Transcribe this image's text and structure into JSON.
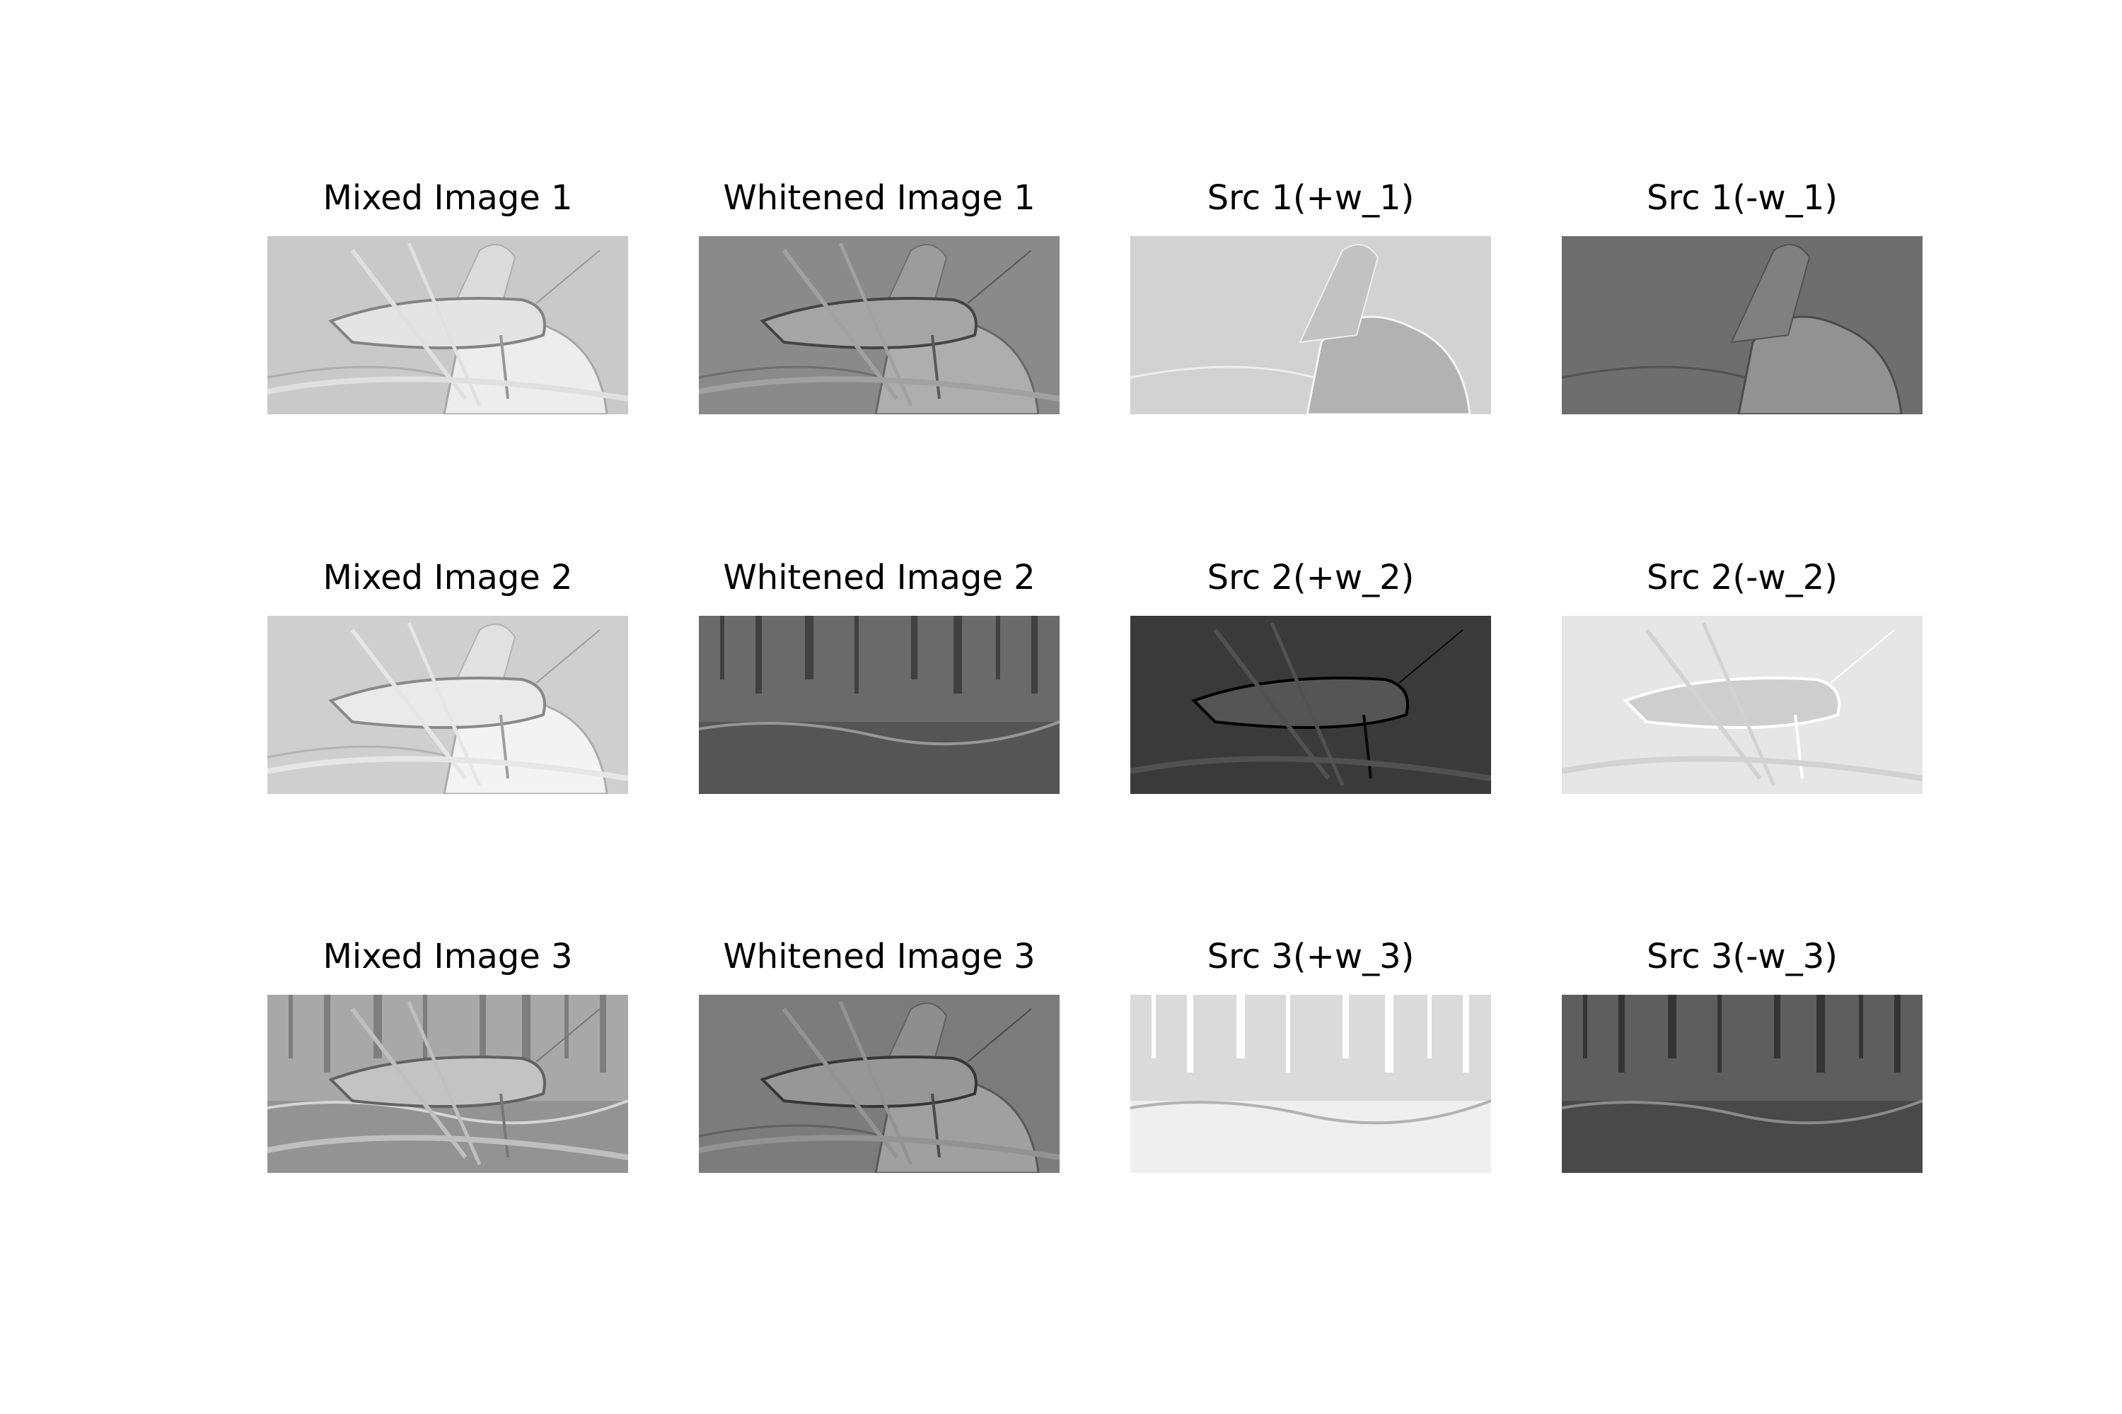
{
  "figure": {
    "panels": [
      {
        "title": "Mixed Image 1",
        "tone": "#c9c9c9",
        "content": "grasshopper-rock-blend",
        "inverted": false
      },
      {
        "title": "Whitened Image 1",
        "tone": "#8a8a8a",
        "content": "grasshopper-rock-blend",
        "inverted": false
      },
      {
        "title": "Src 1(+w_1)",
        "tone": "#d2d2d2",
        "content": "rock-valley",
        "inverted": true
      },
      {
        "title": "Src 1(-w_1)",
        "tone": "#6e6e6e",
        "content": "rock-valley",
        "inverted": false
      },
      {
        "title": "Mixed Image 2",
        "tone": "#cfcfcf",
        "content": "grasshopper-rock-blend",
        "inverted": false
      },
      {
        "title": "Whitened Image 2",
        "tone": "#6a6a6a",
        "content": "forest-clearing",
        "inverted": false
      },
      {
        "title": "Src 2(+w_2)",
        "tone": "#3a3a3a",
        "content": "grasshopper",
        "inverted": false
      },
      {
        "title": "Src 2(-w_2)",
        "tone": "#e6e6e6",
        "content": "grasshopper",
        "inverted": true
      },
      {
        "title": "Mixed Image 3",
        "tone": "#a8a8a8",
        "content": "grasshopper-forest-blend",
        "inverted": false
      },
      {
        "title": "Whitened Image 3",
        "tone": "#7c7c7c",
        "content": "grasshopper-rock-blend",
        "inverted": false
      },
      {
        "title": "Src 3(+w_3)",
        "tone": "#dadada",
        "content": "forest-clearing",
        "inverted": true
      },
      {
        "title": "Src 3(-w_3)",
        "tone": "#5e5e5e",
        "content": "forest-clearing",
        "inverted": false
      }
    ]
  }
}
